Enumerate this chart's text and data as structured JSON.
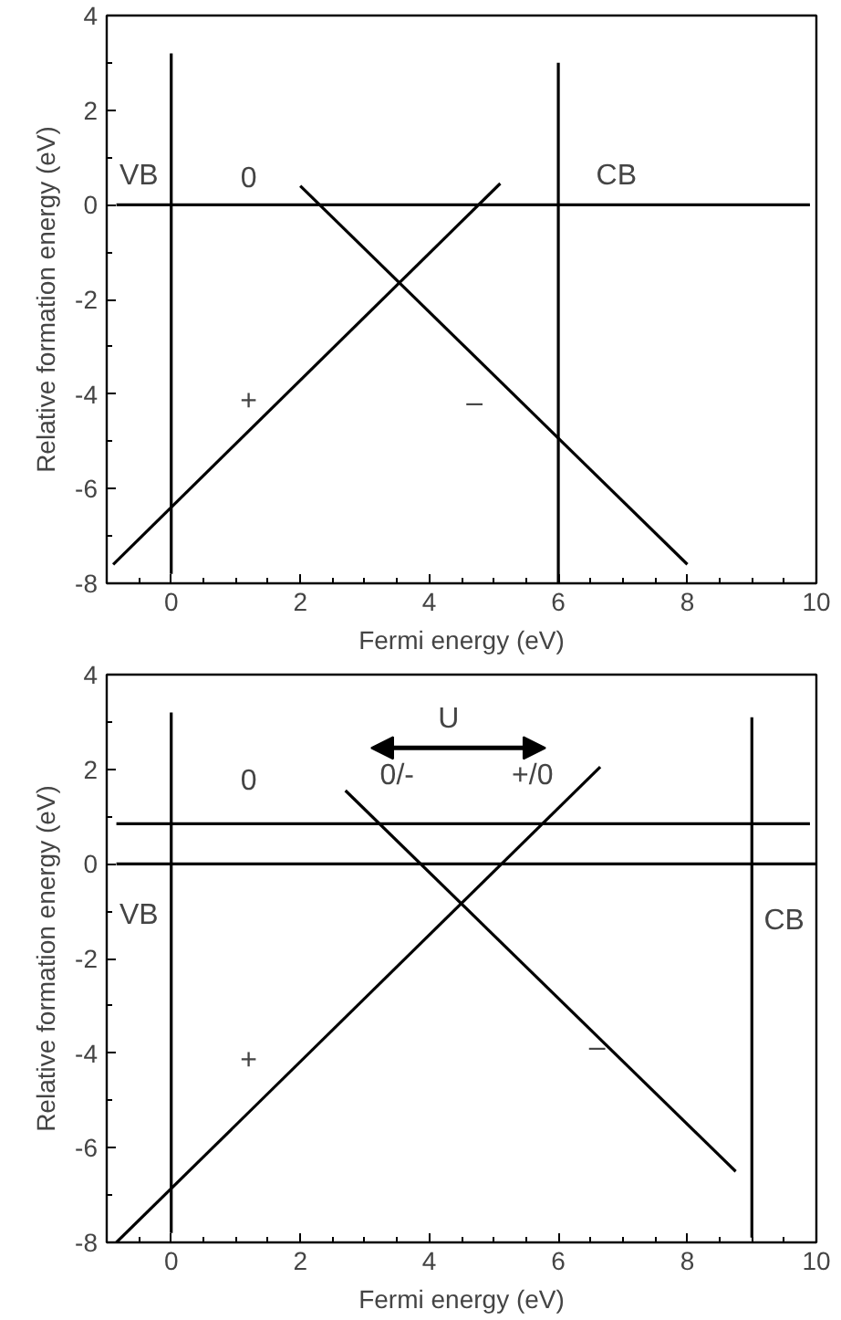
{
  "chart_data": [
    {
      "type": "line",
      "xlabel": "Fermi energy (eV)",
      "ylabel": "Relative formation energy (eV)",
      "xlim": [
        -1,
        10
      ],
      "ylim": [
        -8,
        4
      ],
      "xticks": [
        0,
        2,
        4,
        6,
        8,
        10,
        {
          "value": -0.5,
          "label": null
        },
        {
          "value": 0.5,
          "label": null
        },
        {
          "value": 1,
          "label": null
        },
        {
          "value": 1.5,
          "label": null
        },
        {
          "value": 2.5,
          "label": null
        },
        {
          "value": 3,
          "label": null
        },
        {
          "value": 3.5,
          "label": null
        },
        {
          "value": 4.5,
          "label": null
        },
        {
          "value": 5,
          "label": null
        },
        {
          "value": 5.5,
          "label": null
        },
        {
          "value": 6.5,
          "label": null
        },
        {
          "value": 7,
          "label": null
        },
        {
          "value": 7.5,
          "label": null
        },
        {
          "value": 8.5,
          "label": null
        },
        {
          "value": 9,
          "label": null
        },
        {
          "value": 9.5,
          "label": null
        }
      ],
      "yticks": [
        -8,
        -6,
        -4,
        -2,
        0,
        2,
        4,
        {
          "value": -7,
          "label": null
        },
        {
          "value": -5,
          "label": null
        },
        {
          "value": -3,
          "label": null
        },
        {
          "value": -1,
          "label": null
        },
        {
          "value": 1,
          "label": null
        },
        {
          "value": 3,
          "label": null
        }
      ],
      "series": [
        {
          "color": "#000000",
          "x": [
            -0.9,
            5.1
          ],
          "values": [
            -7.6,
            0.45
          ]
        },
        {
          "color": "#000000",
          "x": [
            2.0,
            8.0
          ],
          "values": [
            0.4,
            -7.6
          ]
        },
        {
          "color": "#000000",
          "x": [
            -0.85,
            9.9
          ],
          "values": [
            0,
            0
          ]
        },
        {
          "color": "#000000",
          "x": [
            0,
            0
          ],
          "values": [
            -7.8,
            3.2
          ]
        },
        {
          "color": "#000000",
          "x": [
            6,
            6
          ],
          "values": [
            -8,
            3.0
          ]
        }
      ],
      "annotations": [
        "VB",
        "0",
        "CB",
        "+",
        "–"
      ]
    },
    {
      "type": "line",
      "xlabel": "Fermi energy (eV)",
      "ylabel": "Relative formation energy (eV)",
      "xlim": [
        -1,
        10
      ],
      "ylim": [
        -8,
        4
      ],
      "xticks": [
        0,
        2,
        4,
        6,
        8,
        10,
        {
          "value": -0.5,
          "label": null
        },
        {
          "value": 0.5,
          "label": null
        },
        {
          "value": 1,
          "label": null
        },
        {
          "value": 1.5,
          "label": null
        },
        {
          "value": 2.5,
          "label": null
        },
        {
          "value": 3,
          "label": null
        },
        {
          "value": 3.5,
          "label": null
        },
        {
          "value": 4.5,
          "label": null
        },
        {
          "value": 5,
          "label": null
        },
        {
          "value": 5.5,
          "label": null
        },
        {
          "value": 6.5,
          "label": null
        },
        {
          "value": 7,
          "label": null
        },
        {
          "value": 7.5,
          "label": null
        },
        {
          "value": 8.5,
          "label": null
        },
        {
          "value": 9,
          "label": null
        },
        {
          "value": 9.5,
          "label": null
        }
      ],
      "yticks": [
        -8,
        -6,
        -4,
        -2,
        0,
        2,
        4,
        {
          "value": -7,
          "label": null
        },
        {
          "value": -5,
          "label": null
        },
        {
          "value": -3,
          "label": null
        },
        {
          "value": -1,
          "label": null
        },
        {
          "value": 1,
          "label": null
        },
        {
          "value": 3,
          "label": null
        }
      ],
      "series": [
        {
          "color": "#000000",
          "x": [
            -0.85,
            6.65
          ],
          "values": [
            -8,
            2.05
          ]
        },
        {
          "color": "#000000",
          "x": [
            2.7,
            8.75
          ],
          "values": [
            1.55,
            -6.5
          ]
        },
        {
          "color": "#000000",
          "x": [
            -0.85,
            10
          ],
          "values": [
            0,
            0
          ]
        },
        {
          "color": "#000000",
          "x": [
            -0.85,
            9.9
          ],
          "values": [
            0.85,
            0.85
          ]
        },
        {
          "color": "#000000",
          "x": [
            0,
            0
          ],
          "values": [
            -7.8,
            3.2
          ]
        },
        {
          "color": "#000000",
          "x": [
            9,
            9
          ],
          "values": [
            -7.9,
            3.1
          ]
        }
      ],
      "annotations": [
        "U",
        "0/-",
        "+/0",
        "0",
        "VB",
        "CB",
        "+",
        "–"
      ]
    }
  ]
}
